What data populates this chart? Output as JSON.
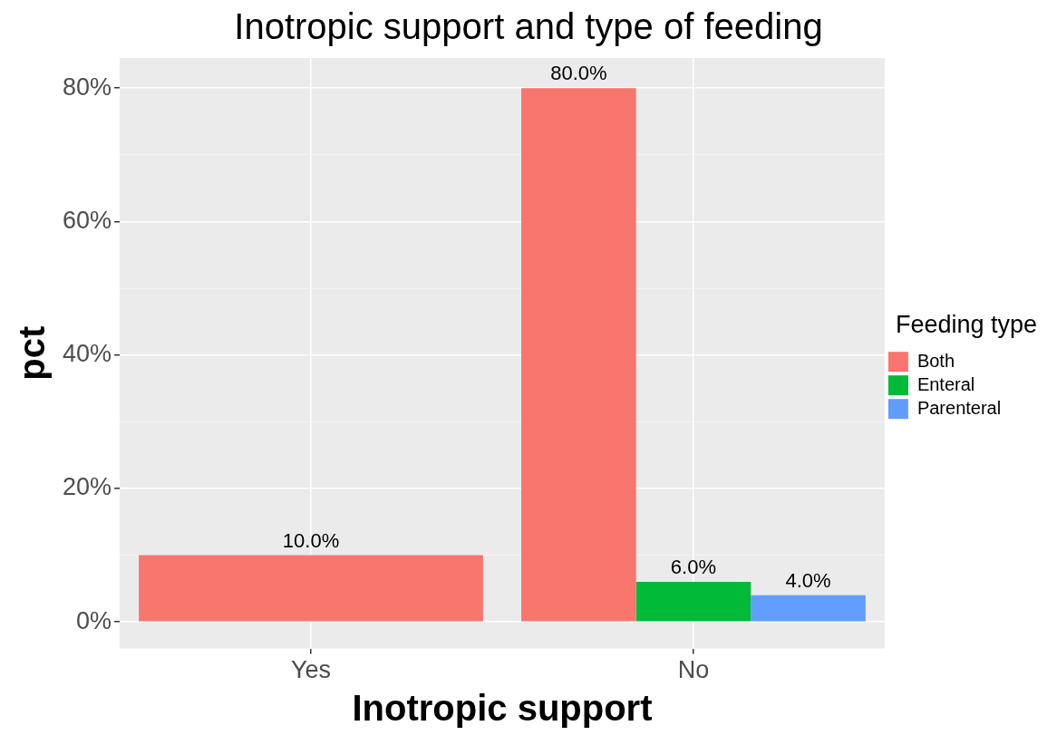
{
  "chart_data": {
    "type": "bar",
    "title": "Inotropic support and type of feeding",
    "xlabel": "Inotropic support",
    "ylabel": "pct",
    "legend_title": "Feeding type",
    "categories": [
      "Yes",
      "No"
    ],
    "series": [
      {
        "name": "Both",
        "color": "#f8766d",
        "values": [
          10,
          80
        ],
        "value_labels": [
          "10.0%",
          "80.0%"
        ]
      },
      {
        "name": "Enteral",
        "color": "#00ba38",
        "values": [
          null,
          6
        ],
        "value_labels": [
          null,
          "6.0%"
        ]
      },
      {
        "name": "Parenteral",
        "color": "#619cff",
        "values": [
          null,
          4
        ],
        "value_labels": [
          null,
          "4.0%"
        ]
      }
    ],
    "ylim": [
      -4,
      84.5
    ],
    "yticks": [
      {
        "value": 0,
        "label": "0%"
      },
      {
        "value": 10,
        "label": null
      },
      {
        "value": 20,
        "label": "20%"
      },
      {
        "value": 30,
        "label": null
      },
      {
        "value": 40,
        "label": "40%"
      },
      {
        "value": 50,
        "label": null
      },
      {
        "value": 60,
        "label": "60%"
      },
      {
        "value": 70,
        "label": null
      },
      {
        "value": 80,
        "label": "80%"
      }
    ],
    "grid": true,
    "legend": "right"
  }
}
